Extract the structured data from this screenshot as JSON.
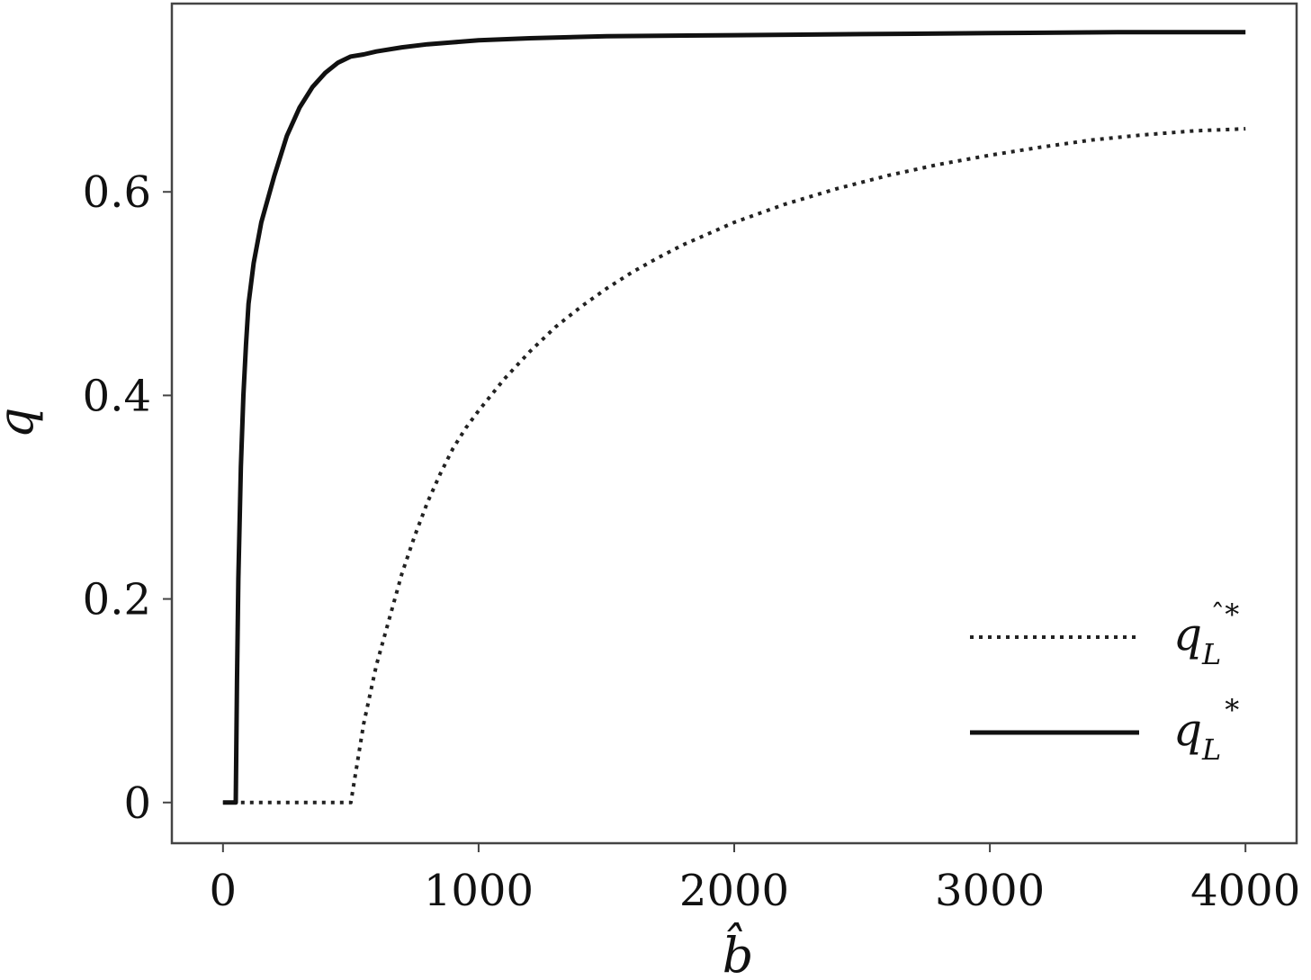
{
  "chart_data": {
    "type": "line",
    "title": "",
    "xlabel": "b̂",
    "ylabel": "q",
    "xlim": [
      -200,
      4200
    ],
    "ylim": [
      -0.04,
      0.785
    ],
    "xticks": [
      0,
      1000,
      2000,
      3000,
      4000
    ],
    "xtick_labels": [
      "0",
      "1000",
      "2000",
      "3000",
      "4000"
    ],
    "yticks": [
      0,
      0.2,
      0.4,
      0.6
    ],
    "ytick_labels": [
      "0",
      "0.2",
      "0.4",
      "0.6"
    ],
    "grid": false,
    "legend_position": "bottom-right",
    "series": [
      {
        "name": "q_L^*",
        "legend_main": "q",
        "legend_sub": "L",
        "legend_sup": "̂*",
        "style": "dotted",
        "color": "#222222",
        "x": [
          0,
          100,
          200,
          300,
          400,
          500,
          550,
          600,
          650,
          700,
          750,
          800,
          850,
          900,
          950,
          1000,
          1100,
          1200,
          1300,
          1400,
          1500,
          1600,
          1700,
          1800,
          1900,
          2000,
          2200,
          2400,
          2600,
          2800,
          3000,
          3200,
          3400,
          3600,
          3800,
          4000
        ],
        "y": [
          0,
          0,
          0,
          0,
          0,
          0,
          0.077,
          0.135,
          0.18,
          0.225,
          0.262,
          0.295,
          0.323,
          0.348,
          0.368,
          0.385,
          0.416,
          0.443,
          0.467,
          0.487,
          0.505,
          0.521,
          0.535,
          0.548,
          0.559,
          0.57,
          0.588,
          0.603,
          0.616,
          0.627,
          0.636,
          0.644,
          0.651,
          0.656,
          0.66,
          0.662
        ]
      },
      {
        "name": "q_L^*",
        "legend_main": "q",
        "legend_sub": "L",
        "legend_sup": "*",
        "style": "solid",
        "color": "#111111",
        "x": [
          0,
          50,
          55,
          60,
          70,
          80,
          90,
          100,
          120,
          150,
          200,
          250,
          300,
          350,
          400,
          450,
          500,
          550,
          600,
          700,
          800,
          900,
          1000,
          1200,
          1500,
          2000,
          2500,
          3000,
          3500,
          4000
        ],
        "y": [
          0,
          0,
          0.12,
          0.22,
          0.33,
          0.4,
          0.45,
          0.49,
          0.53,
          0.57,
          0.615,
          0.655,
          0.683,
          0.703,
          0.717,
          0.727,
          0.733,
          0.735,
          0.738,
          0.742,
          0.745,
          0.747,
          0.749,
          0.751,
          0.753,
          0.754,
          0.755,
          0.756,
          0.757,
          0.757
        ]
      }
    ]
  }
}
